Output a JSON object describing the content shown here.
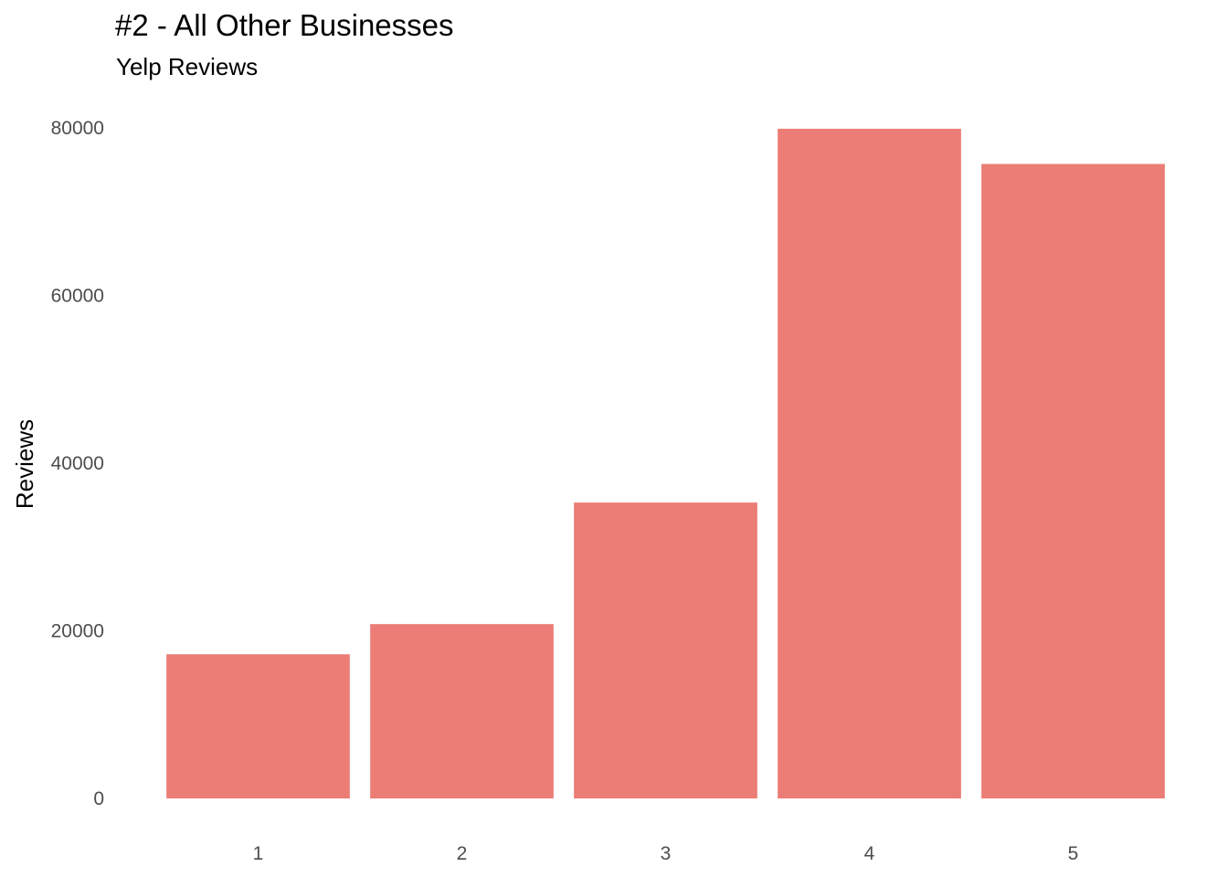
{
  "chart_data": {
    "type": "bar",
    "title": "#2 - All Other Businesses",
    "subtitle": "Yelp Reviews",
    "xlabel": "",
    "ylabel": "Reviews",
    "categories": [
      "1",
      "2",
      "3",
      "4",
      "5"
    ],
    "values": [
      17200,
      20800,
      35300,
      79900,
      75700
    ],
    "ylim": [
      0,
      80000
    ],
    "yticks": [
      0,
      20000,
      40000,
      60000,
      80000
    ],
    "ytick_labels": [
      "0",
      "20000",
      "40000",
      "60000",
      "80000"
    ],
    "bar_color": "#eb7d76",
    "grid": false,
    "legend": "none"
  }
}
